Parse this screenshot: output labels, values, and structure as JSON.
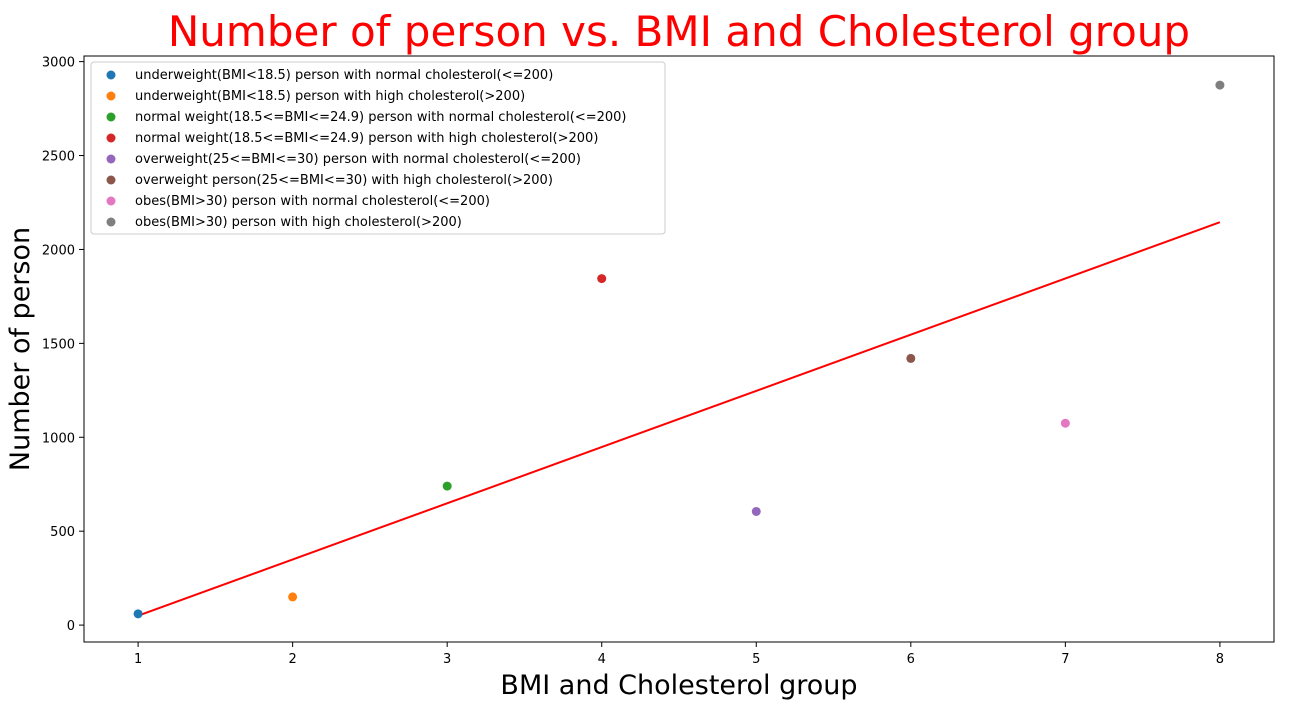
{
  "chart_data": {
    "type": "scatter",
    "title": "Number of person vs. BMI and Cholesterol group",
    "title_color": "#ff0000",
    "xlabel": "BMI and Cholesterol group",
    "ylabel": "Number of person",
    "xlim": [
      0.65,
      8.35
    ],
    "ylim": [
      -90,
      3030
    ],
    "xticks": [
      1,
      2,
      3,
      4,
      5,
      6,
      7,
      8
    ],
    "yticks": [
      0,
      500,
      1000,
      1500,
      2000,
      2500,
      3000
    ],
    "grid": false,
    "legend_position": "top-left",
    "series": [
      {
        "name": "underweight(BMI<18.5) person with normal cholesterol(<=200)",
        "x": 1,
        "y": 60,
        "color": "#1f77b4"
      },
      {
        "name": "underweight(BMI<18.5) person with high cholesterol(>200)",
        "x": 2,
        "y": 150,
        "color": "#ff7f0e"
      },
      {
        "name": "normal weight(18.5<=BMI<=24.9) person with normal cholesterol(<=200)",
        "x": 3,
        "y": 740,
        "color": "#2ca02c"
      },
      {
        "name": "normal weight(18.5<=BMI<=24.9) person with high cholesterol(>200)",
        "x": 4,
        "y": 1845,
        "color": "#d62728"
      },
      {
        "name": "overweight(25<=BMI<=30) person with normal cholesterol(<=200)",
        "x": 5,
        "y": 605,
        "color": "#9467bd"
      },
      {
        "name": "overweight person(25<=BMI<=30) with high cholesterol(>200)",
        "x": 6,
        "y": 1420,
        "color": "#8c564b"
      },
      {
        "name": "obes(BMI>30) person with normal cholesterol(<=200)",
        "x": 7,
        "y": 1075,
        "color": "#e377c2"
      },
      {
        "name": "obes(BMI>30) person with high cholesterol(>200)",
        "x": 8,
        "y": 2875,
        "color": "#7f7f7f"
      }
    ],
    "trend_line": {
      "x": [
        1,
        8
      ],
      "y": [
        50,
        2145
      ],
      "color": "#ff0000"
    }
  }
}
